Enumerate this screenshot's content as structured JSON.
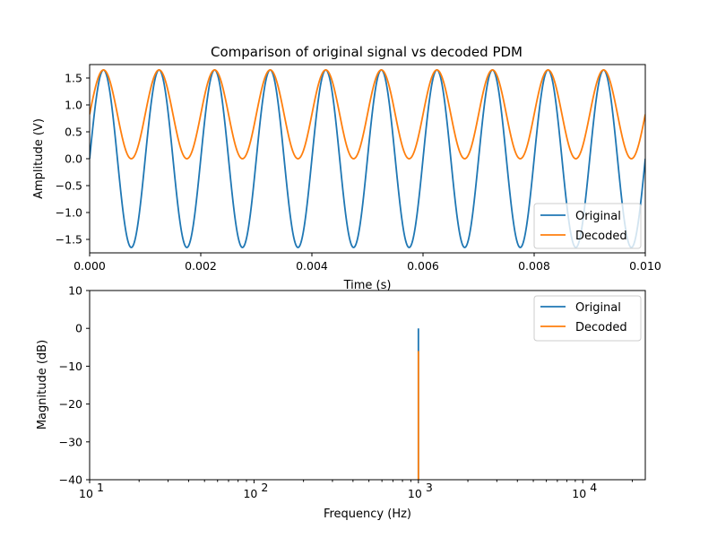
{
  "chart_data": [
    {
      "type": "line",
      "title": "Comparison of original signal vs decoded PDM",
      "xlabel": "Time (s)",
      "ylabel": "Amplitude (V)",
      "xlim": [
        0.0,
        0.01
      ],
      "ylim": [
        -1.75,
        1.75
      ],
      "xticks": [
        "0.000",
        "0.002",
        "0.004",
        "0.006",
        "0.008",
        "0.010"
      ],
      "yticks": [
        "1.5",
        "1.0",
        "0.5",
        "0.0",
        "−0.5",
        "−1.0",
        "−1.5"
      ],
      "xtick_values": [
        0,
        0.002,
        0.004,
        0.006,
        0.008,
        0.01
      ],
      "ytick_values": [
        1.5,
        1.0,
        0.5,
        0.0,
        -0.5,
        -1.0,
        -1.5
      ],
      "grid": false,
      "legend_position": "lower-right",
      "series": [
        {
          "name": "Original",
          "color": "#1f77b4",
          "function": "sine",
          "amplitude": 1.65,
          "offset": 0.0,
          "frequency_hz": 1000,
          "phase_rad": 0.0
        },
        {
          "name": "Decoded",
          "color": "#ff7f0e",
          "function": "sine",
          "amplitude": 0.825,
          "offset": 0.825,
          "frequency_hz": 1000,
          "phase_rad": 0.0
        }
      ]
    },
    {
      "type": "line",
      "title": "",
      "xlabel": "Frequency (Hz)",
      "ylabel": "Magnitude (dB)",
      "xscale": "log",
      "xlim": [
        10,
        24000
      ],
      "ylim": [
        -40,
        10
      ],
      "xticks": [
        {
          "base": "10",
          "exp": "1",
          "value": 10
        },
        {
          "base": "10",
          "exp": "2",
          "value": 100
        },
        {
          "base": "10",
          "exp": "3",
          "value": 1000
        },
        {
          "base": "10",
          "exp": "4",
          "value": 10000
        }
      ],
      "yticks": [
        "10",
        "0",
        "−10",
        "−20",
        "−30",
        "−40"
      ],
      "ytick_values": [
        10,
        0,
        -10,
        -20,
        -30,
        -40
      ],
      "grid": false,
      "legend_position": "upper-right",
      "series": [
        {
          "name": "Original",
          "color": "#1f77b4",
          "peak_hz": 1000,
          "peak_db": 0,
          "floor_db": -40
        },
        {
          "name": "Decoded",
          "color": "#ff7f0e",
          "peak_hz": 1000,
          "peak_db": -6,
          "floor_db": -40
        }
      ]
    }
  ]
}
